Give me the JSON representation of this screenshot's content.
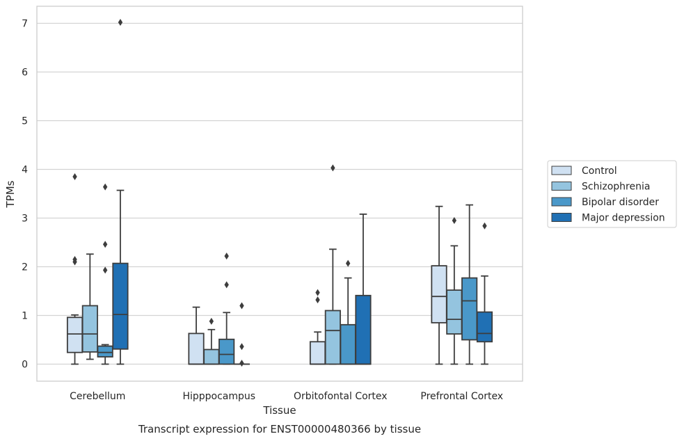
{
  "chart_data": {
    "type": "box",
    "xlabel": "Tissue",
    "ylabel": "TPMs",
    "caption": "Transcript expression for ENST00000480366 by tissue",
    "ylim": [
      -0.35,
      7.35
    ],
    "yticks": [
      0,
      1,
      2,
      3,
      4,
      5,
      6,
      7
    ],
    "grid": "horizontal",
    "legend_position": "right",
    "categories": [
      "Cerebellum",
      "Hipppocampus",
      "Orbitofontal Cortex",
      "Prefrontal Cortex"
    ],
    "series": [
      {
        "name": "Control",
        "color": "#d0e1f2",
        "boxes": [
          {
            "q1": 0.24,
            "median": 0.62,
            "q3": 0.96,
            "whisker_low": 0.0,
            "whisker_high": 1.01,
            "outliers": [
              2.1,
              2.15,
              3.85
            ]
          },
          {
            "q1": 0.0,
            "median": 0.0,
            "q3": 0.63,
            "whisker_low": 0.0,
            "whisker_high": 1.17,
            "outliers": []
          },
          {
            "q1": 0.0,
            "median": 0.0,
            "q3": 0.46,
            "whisker_low": 0.0,
            "whisker_high": 0.66,
            "outliers": [
              1.32,
              1.47
            ]
          },
          {
            "q1": 0.85,
            "median": 1.39,
            "q3": 2.02,
            "whisker_low": 0.0,
            "whisker_high": 3.24,
            "outliers": []
          }
        ]
      },
      {
        "name": "Schizophrenia",
        "color": "#94c4df",
        "boxes": [
          {
            "q1": 0.25,
            "median": 0.62,
            "q3": 1.2,
            "whisker_low": 0.1,
            "whisker_high": 2.26,
            "outliers": []
          },
          {
            "q1": 0.0,
            "median": 0.0,
            "q3": 0.3,
            "whisker_low": 0.0,
            "whisker_high": 0.71,
            "outliers": [
              0.88
            ]
          },
          {
            "q1": 0.0,
            "median": 0.69,
            "q3": 1.1,
            "whisker_low": 0.0,
            "whisker_high": 2.36,
            "outliers": [
              4.03
            ]
          },
          {
            "q1": 0.62,
            "median": 0.92,
            "q3": 1.52,
            "whisker_low": 0.0,
            "whisker_high": 2.43,
            "outliers": [
              2.95
            ]
          }
        ]
      },
      {
        "name": "Bipolar disorder",
        "color": "#4a98c9",
        "boxes": [
          {
            "q1": 0.15,
            "median": 0.24,
            "q3": 0.37,
            "whisker_low": 0.0,
            "whisker_high": 0.4,
            "outliers": [
              1.93,
              2.46,
              3.64
            ]
          },
          {
            "q1": 0.0,
            "median": 0.2,
            "q3": 0.51,
            "whisker_low": 0.0,
            "whisker_high": 1.06,
            "outliers": [
              1.63,
              2.22
            ]
          },
          {
            "q1": 0.0,
            "median": 0.0,
            "q3": 0.81,
            "whisker_low": 0.0,
            "whisker_high": 1.77,
            "outliers": [
              2.07
            ]
          },
          {
            "q1": 0.5,
            "median": 1.3,
            "q3": 1.77,
            "whisker_low": 0.0,
            "whisker_high": 3.27,
            "outliers": []
          }
        ]
      },
      {
        "name": "Major depression",
        "color": "#2070b4",
        "boxes": [
          {
            "q1": 0.31,
            "median": 1.02,
            "q3": 2.07,
            "whisker_low": 0.0,
            "whisker_high": 3.57,
            "outliers": [
              7.02
            ]
          },
          {
            "q1": 0.0,
            "median": 0.0,
            "q3": 0.0,
            "whisker_low": 0.0,
            "whisker_high": 0.0,
            "outliers": [
              0.02,
              0.36,
              1.2
            ]
          },
          {
            "q1": 0.0,
            "median": 0.0,
            "q3": 1.41,
            "whisker_low": 0.0,
            "whisker_high": 3.08,
            "outliers": []
          },
          {
            "q1": 0.46,
            "median": 0.63,
            "q3": 1.07,
            "whisker_low": 0.0,
            "whisker_high": 1.81,
            "outliers": [
              2.84
            ]
          }
        ]
      }
    ]
  }
}
